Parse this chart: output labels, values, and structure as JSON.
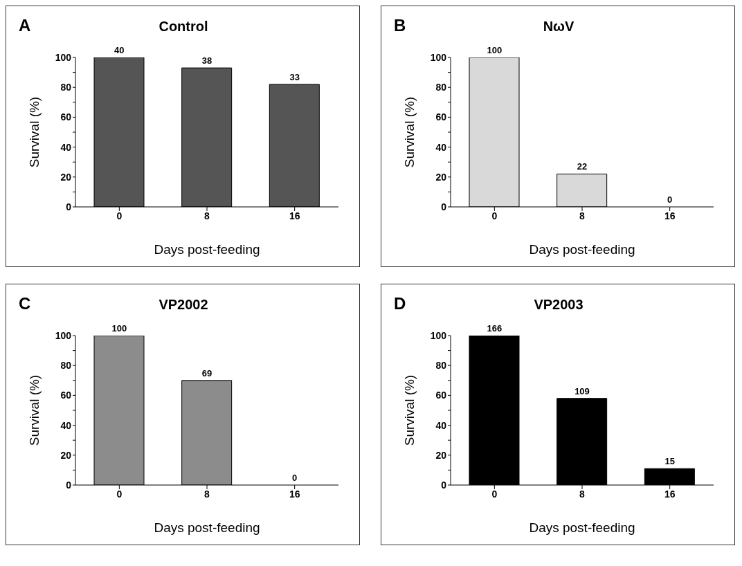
{
  "chart_data": [
    {
      "type": "bar",
      "title": "Control",
      "annotations": [
        "A",
        {
          "text": "40",
          "x": "0",
          "y": 100
        },
        {
          "text": "38",
          "x": "8",
          "y": 93
        },
        {
          "text": "33",
          "x": "16",
          "y": 82
        }
      ],
      "xlabel": "Days post-feeding",
      "ylabel": "Survival (%)",
      "categories": [
        "0",
        "8",
        "16"
      ],
      "values": [
        100,
        93,
        82
      ],
      "color": "#555555",
      "ylim": [
        0,
        100
      ],
      "yticks": [
        0,
        {
          "value": 10,
          "label": null
        },
        20,
        {
          "value": 30,
          "label": null
        },
        40,
        {
          "value": 50,
          "label": null
        },
        60,
        {
          "value": 70,
          "label": null
        },
        80,
        {
          "value": 90,
          "label": null
        },
        100
      ],
      "grid": false,
      "legend": false
    },
    {
      "type": "bar",
      "title": "NωV",
      "annotations": [
        "B"
      ],
      "xlabel": "Days post-feeding",
      "ylabel": "Survival (%)",
      "categories": [
        "0",
        "8",
        "16"
      ],
      "values": [
        100,
        22,
        0
      ],
      "color": "#d9d9d9",
      "data_labels": true,
      "ylim": [
        0,
        100
      ],
      "yticks": [
        0,
        {
          "value": 10,
          "label": null
        },
        20,
        {
          "value": 30,
          "label": null
        },
        40,
        {
          "value": 50,
          "label": null
        },
        60,
        {
          "value": 70,
          "label": null
        },
        80,
        {
          "value": 90,
          "label": null
        },
        100
      ],
      "grid": false,
      "legend": false
    },
    {
      "type": "bar",
      "title": "VP2002",
      "annotations": [
        "C",
        {
          "text": "69",
          "x": "8",
          "y": 70
        }
      ],
      "xlabel": "Days post-feeding",
      "ylabel": "Survival (%)",
      "categories": [
        "0",
        "8",
        "16"
      ],
      "values": [
        100,
        70,
        0
      ],
      "color": "#8c8c8c",
      "value_labels": [
        "100",
        null,
        "0"
      ],
      "ylim": [
        0,
        100
      ],
      "yticks": [
        0,
        {
          "value": 10,
          "label": null
        },
        20,
        {
          "value": 30,
          "label": null
        },
        40,
        {
          "value": 50,
          "label": null
        },
        60,
        {
          "value": 70,
          "label": null
        },
        80,
        {
          "value": 90,
          "label": null
        },
        100
      ],
      "grid": false,
      "legend": false
    },
    {
      "type": "bar",
      "title": "VP2003",
      "annotations": [
        "D",
        {
          "text": "166",
          "x": "0",
          "y": 100
        },
        {
          "text": "109",
          "x": "8",
          "y": 58
        },
        {
          "text": "15",
          "x": "16",
          "y": 11
        }
      ],
      "xlabel": "Days post-feeding",
      "ylabel": "Survival (%)",
      "categories": [
        "0",
        "8",
        "16"
      ],
      "values": [
        100,
        58,
        11
      ],
      "color": "#000000",
      "ylim": [
        0,
        100
      ],
      "yticks": [
        0,
        {
          "value": 10,
          "label": null
        },
        20,
        {
          "value": 30,
          "label": null
        },
        40,
        {
          "value": 50,
          "label": null
        },
        60,
        {
          "value": 70,
          "label": null
        },
        80,
        {
          "value": 90,
          "label": null
        },
        100
      ],
      "grid": false,
      "legend": false
    }
  ]
}
